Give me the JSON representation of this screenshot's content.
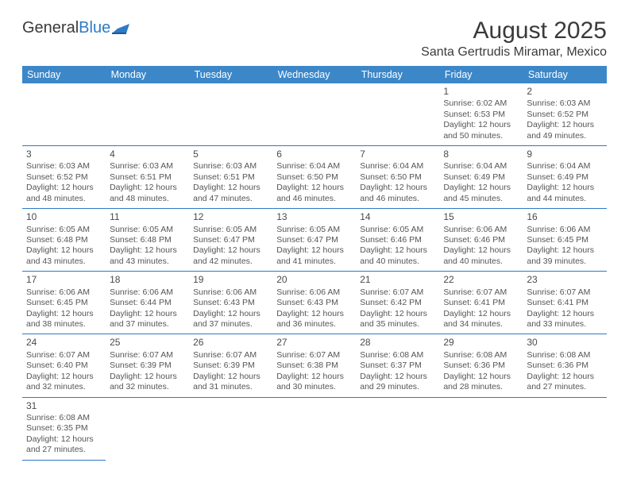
{
  "colors": {
    "header_bg": "#3c87c8",
    "header_text": "#ffffff",
    "cell_border": "#2d7bc4",
    "body_text": "#555555",
    "page_bg": "#ffffff",
    "logo_blue": "#2d7bc4",
    "title_color": "#3a3a3a"
  },
  "logo": {
    "part1": "General",
    "part2": "Blue"
  },
  "title": "August 2025",
  "location": "Santa Gertrudis Miramar, Mexico",
  "weekdays": [
    "Sunday",
    "Monday",
    "Tuesday",
    "Wednesday",
    "Thursday",
    "Friday",
    "Saturday"
  ],
  "weeks": [
    [
      null,
      null,
      null,
      null,
      null,
      {
        "n": "1",
        "sr": "Sunrise: 6:02 AM",
        "ss": "Sunset: 6:53 PM",
        "d1": "Daylight: 12 hours",
        "d2": "and 50 minutes."
      },
      {
        "n": "2",
        "sr": "Sunrise: 6:03 AM",
        "ss": "Sunset: 6:52 PM",
        "d1": "Daylight: 12 hours",
        "d2": "and 49 minutes."
      }
    ],
    [
      {
        "n": "3",
        "sr": "Sunrise: 6:03 AM",
        "ss": "Sunset: 6:52 PM",
        "d1": "Daylight: 12 hours",
        "d2": "and 48 minutes."
      },
      {
        "n": "4",
        "sr": "Sunrise: 6:03 AM",
        "ss": "Sunset: 6:51 PM",
        "d1": "Daylight: 12 hours",
        "d2": "and 48 minutes."
      },
      {
        "n": "5",
        "sr": "Sunrise: 6:03 AM",
        "ss": "Sunset: 6:51 PM",
        "d1": "Daylight: 12 hours",
        "d2": "and 47 minutes."
      },
      {
        "n": "6",
        "sr": "Sunrise: 6:04 AM",
        "ss": "Sunset: 6:50 PM",
        "d1": "Daylight: 12 hours",
        "d2": "and 46 minutes."
      },
      {
        "n": "7",
        "sr": "Sunrise: 6:04 AM",
        "ss": "Sunset: 6:50 PM",
        "d1": "Daylight: 12 hours",
        "d2": "and 46 minutes."
      },
      {
        "n": "8",
        "sr": "Sunrise: 6:04 AM",
        "ss": "Sunset: 6:49 PM",
        "d1": "Daylight: 12 hours",
        "d2": "and 45 minutes."
      },
      {
        "n": "9",
        "sr": "Sunrise: 6:04 AM",
        "ss": "Sunset: 6:49 PM",
        "d1": "Daylight: 12 hours",
        "d2": "and 44 minutes."
      }
    ],
    [
      {
        "n": "10",
        "sr": "Sunrise: 6:05 AM",
        "ss": "Sunset: 6:48 PM",
        "d1": "Daylight: 12 hours",
        "d2": "and 43 minutes."
      },
      {
        "n": "11",
        "sr": "Sunrise: 6:05 AM",
        "ss": "Sunset: 6:48 PM",
        "d1": "Daylight: 12 hours",
        "d2": "and 43 minutes."
      },
      {
        "n": "12",
        "sr": "Sunrise: 6:05 AM",
        "ss": "Sunset: 6:47 PM",
        "d1": "Daylight: 12 hours",
        "d2": "and 42 minutes."
      },
      {
        "n": "13",
        "sr": "Sunrise: 6:05 AM",
        "ss": "Sunset: 6:47 PM",
        "d1": "Daylight: 12 hours",
        "d2": "and 41 minutes."
      },
      {
        "n": "14",
        "sr": "Sunrise: 6:05 AM",
        "ss": "Sunset: 6:46 PM",
        "d1": "Daylight: 12 hours",
        "d2": "and 40 minutes."
      },
      {
        "n": "15",
        "sr": "Sunrise: 6:06 AM",
        "ss": "Sunset: 6:46 PM",
        "d1": "Daylight: 12 hours",
        "d2": "and 40 minutes."
      },
      {
        "n": "16",
        "sr": "Sunrise: 6:06 AM",
        "ss": "Sunset: 6:45 PM",
        "d1": "Daylight: 12 hours",
        "d2": "and 39 minutes."
      }
    ],
    [
      {
        "n": "17",
        "sr": "Sunrise: 6:06 AM",
        "ss": "Sunset: 6:45 PM",
        "d1": "Daylight: 12 hours",
        "d2": "and 38 minutes."
      },
      {
        "n": "18",
        "sr": "Sunrise: 6:06 AM",
        "ss": "Sunset: 6:44 PM",
        "d1": "Daylight: 12 hours",
        "d2": "and 37 minutes."
      },
      {
        "n": "19",
        "sr": "Sunrise: 6:06 AM",
        "ss": "Sunset: 6:43 PM",
        "d1": "Daylight: 12 hours",
        "d2": "and 37 minutes."
      },
      {
        "n": "20",
        "sr": "Sunrise: 6:06 AM",
        "ss": "Sunset: 6:43 PM",
        "d1": "Daylight: 12 hours",
        "d2": "and 36 minutes."
      },
      {
        "n": "21",
        "sr": "Sunrise: 6:07 AM",
        "ss": "Sunset: 6:42 PM",
        "d1": "Daylight: 12 hours",
        "d2": "and 35 minutes."
      },
      {
        "n": "22",
        "sr": "Sunrise: 6:07 AM",
        "ss": "Sunset: 6:41 PM",
        "d1": "Daylight: 12 hours",
        "d2": "and 34 minutes."
      },
      {
        "n": "23",
        "sr": "Sunrise: 6:07 AM",
        "ss": "Sunset: 6:41 PM",
        "d1": "Daylight: 12 hours",
        "d2": "and 33 minutes."
      }
    ],
    [
      {
        "n": "24",
        "sr": "Sunrise: 6:07 AM",
        "ss": "Sunset: 6:40 PM",
        "d1": "Daylight: 12 hours",
        "d2": "and 32 minutes."
      },
      {
        "n": "25",
        "sr": "Sunrise: 6:07 AM",
        "ss": "Sunset: 6:39 PM",
        "d1": "Daylight: 12 hours",
        "d2": "and 32 minutes."
      },
      {
        "n": "26",
        "sr": "Sunrise: 6:07 AM",
        "ss": "Sunset: 6:39 PM",
        "d1": "Daylight: 12 hours",
        "d2": "and 31 minutes."
      },
      {
        "n": "27",
        "sr": "Sunrise: 6:07 AM",
        "ss": "Sunset: 6:38 PM",
        "d1": "Daylight: 12 hours",
        "d2": "and 30 minutes."
      },
      {
        "n": "28",
        "sr": "Sunrise: 6:08 AM",
        "ss": "Sunset: 6:37 PM",
        "d1": "Daylight: 12 hours",
        "d2": "and 29 minutes."
      },
      {
        "n": "29",
        "sr": "Sunrise: 6:08 AM",
        "ss": "Sunset: 6:36 PM",
        "d1": "Daylight: 12 hours",
        "d2": "and 28 minutes."
      },
      {
        "n": "30",
        "sr": "Sunrise: 6:08 AM",
        "ss": "Sunset: 6:36 PM",
        "d1": "Daylight: 12 hours",
        "d2": "and 27 minutes."
      }
    ],
    [
      {
        "n": "31",
        "sr": "Sunrise: 6:08 AM",
        "ss": "Sunset: 6:35 PM",
        "d1": "Daylight: 12 hours",
        "d2": "and 27 minutes."
      },
      null,
      null,
      null,
      null,
      null,
      null
    ]
  ]
}
